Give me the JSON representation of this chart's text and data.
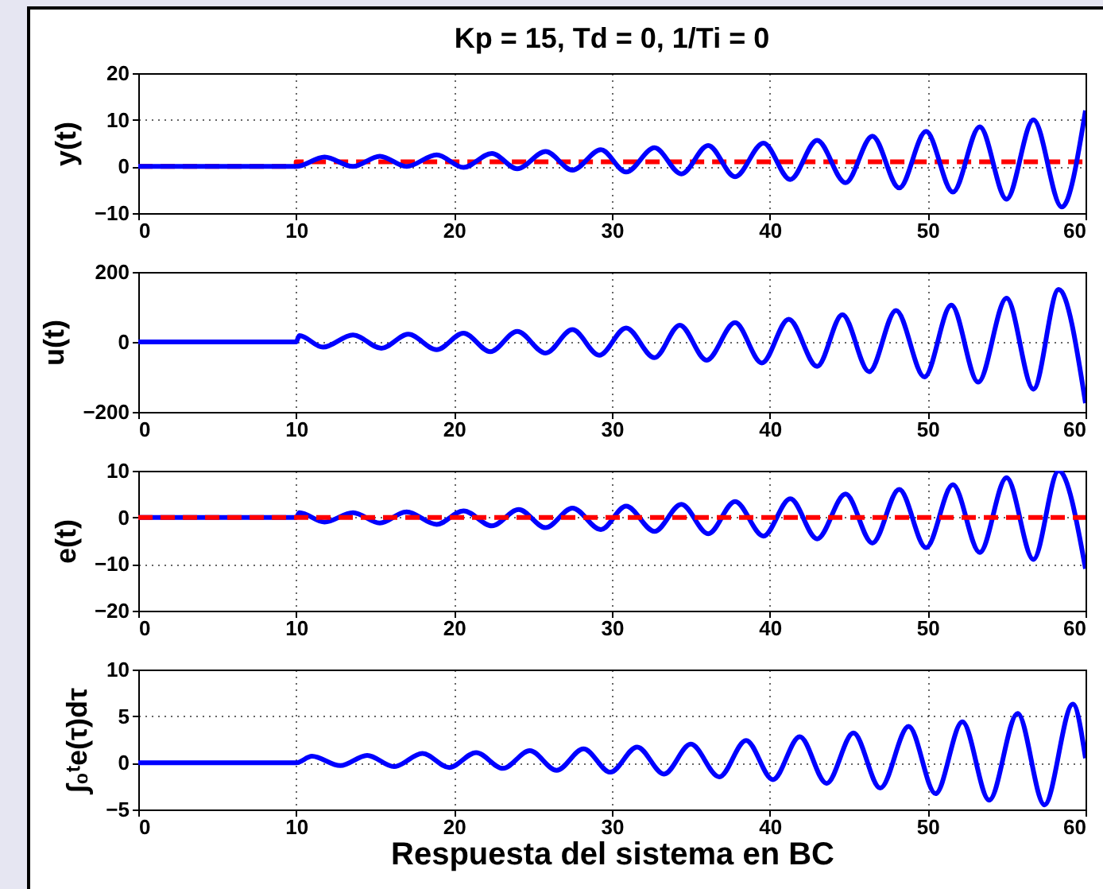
{
  "chart_data": [
    {
      "type": "line",
      "title": "Kp = 15, Td = 0, 1/Ti = 0",
      "ylabel": "y(t)",
      "xlim": [
        0,
        60
      ],
      "xticks": [
        0,
        10,
        20,
        30,
        40,
        50,
        60
      ],
      "ylim": [
        -10,
        20
      ],
      "yticks": [
        -10,
        0,
        10,
        20
      ],
      "grid": true,
      "series": [
        {
          "type": "step",
          "color": "#ff0000",
          "line_style": "dashed",
          "x": [
            0,
            10,
            60
          ],
          "values": [
            0,
            1,
            1
          ]
        },
        {
          "color": "#0000ff",
          "line_style": "solid",
          "x": [
            0,
            10,
            11.8,
            13.6,
            15.3,
            17,
            18.9,
            20.6,
            22.4,
            24,
            25.8,
            27.5,
            29.3,
            30.9,
            32.7,
            34.4,
            36.1,
            37.8,
            39.6,
            41.3,
            43,
            44.8,
            46.5,
            48.2,
            49.9,
            51.6,
            53.3,
            55,
            56.7,
            58.5,
            60
          ],
          "values": [
            0,
            0,
            2,
            0,
            2.2,
            0,
            2.5,
            -0.2,
            2.8,
            -0.5,
            3.2,
            -0.8,
            3.6,
            -1.2,
            4,
            -1.6,
            4.5,
            -2.2,
            5,
            -2.8,
            5.6,
            -3.5,
            6.5,
            -4.6,
            7.5,
            -5.5,
            8.5,
            -7,
            10,
            -8.7,
            12
          ]
        }
      ]
    },
    {
      "type": "line",
      "ylabel": "u(t)",
      "xlim": [
        0,
        60
      ],
      "xticks": [
        0,
        10,
        20,
        30,
        40,
        50,
        60
      ],
      "ylim": [
        -200,
        200
      ],
      "yticks": [
        -200,
        0,
        200
      ],
      "grid": true,
      "series": [
        {
          "color": "#0000ff",
          "line_style": "solid",
          "x": [
            0,
            10,
            10.2,
            11.7,
            13.6,
            15.4,
            17.1,
            18.9,
            20.6,
            22.3,
            24,
            25.8,
            27.5,
            29.2,
            30.9,
            32.7,
            34.3,
            36,
            37.8,
            39.5,
            41.2,
            43,
            44.6,
            46.3,
            48,
            49.8,
            51.5,
            53.2,
            55,
            56.7,
            58.3,
            60
          ],
          "values": [
            0,
            0,
            18,
            -15,
            20,
            -18,
            22,
            -22,
            25,
            -28,
            30,
            -32,
            35,
            -38,
            40,
            -45,
            48,
            -52,
            55,
            -60,
            65,
            -70,
            78,
            -85,
            90,
            -100,
            105,
            -115,
            125,
            -135,
            150,
            -175
          ]
        }
      ]
    },
    {
      "type": "line",
      "ylabel": "e(t)",
      "xlim": [
        0,
        60
      ],
      "xticks": [
        0,
        10,
        20,
        30,
        40,
        50,
        60
      ],
      "ylim": [
        -20,
        10
      ],
      "yticks": [
        -20,
        -10,
        0,
        10
      ],
      "grid": true,
      "series": [
        {
          "color": "#0000ff",
          "line_style": "solid",
          "x": [
            0,
            10,
            10.2,
            11.8,
            13.6,
            15.3,
            17,
            18.9,
            20.6,
            22.4,
            24.1,
            25.8,
            27.5,
            29.3,
            30.9,
            32.7,
            34.4,
            36.1,
            37.8,
            39.6,
            41.3,
            43,
            44.8,
            46.5,
            48.2,
            49.9,
            51.6,
            53.3,
            55,
            56.7,
            58.3,
            60
          ],
          "values": [
            0,
            0,
            1,
            -1,
            1,
            -1.2,
            1.2,
            -1.5,
            1.4,
            -1.8,
            1.7,
            -2.2,
            2,
            -2.6,
            2.4,
            -3,
            2.8,
            -3.5,
            3.4,
            -4,
            4,
            -4.6,
            5,
            -5.5,
            6,
            -6.5,
            7,
            -7.5,
            8.5,
            -9,
            10,
            -11
          ]
        },
        {
          "color": "#ff0000",
          "line_style": "dashed",
          "x": [
            0,
            60
          ],
          "values": [
            0,
            0
          ]
        }
      ]
    },
    {
      "type": "line",
      "ylabel": "∫₀ᵗe(τ)dτ",
      "xlabel": "Respuesta del sistema en BC",
      "xlim": [
        0,
        60
      ],
      "xticks": [
        0,
        10,
        20,
        30,
        40,
        50,
        60
      ],
      "ylim": [
        -5,
        10
      ],
      "yticks": [
        -5,
        0,
        5,
        10
      ],
      "grid": true,
      "series": [
        {
          "color": "#0000ff",
          "line_style": "solid",
          "x": [
            0,
            10,
            11,
            12.8,
            14.5,
            16.2,
            18,
            19.7,
            21.4,
            23.1,
            24.8,
            26.5,
            28.2,
            29.9,
            31.6,
            33.3,
            35,
            36.8,
            38.5,
            40.2,
            41.9,
            43.6,
            45.3,
            47,
            48.8,
            50.5,
            52.2,
            53.9,
            55.7,
            57.4,
            59.2,
            60
          ],
          "values": [
            0,
            0,
            0.7,
            -0.3,
            0.8,
            -0.4,
            1,
            -0.5,
            1.1,
            -0.6,
            1.3,
            -0.8,
            1.5,
            -1,
            1.7,
            -1.2,
            2,
            -1.5,
            2.4,
            -1.8,
            2.8,
            -2.2,
            3.2,
            -2.7,
            3.9,
            -3.3,
            4.4,
            -4,
            5.3,
            -4.5,
            6.3,
            0.5
          ]
        }
      ]
    }
  ]
}
